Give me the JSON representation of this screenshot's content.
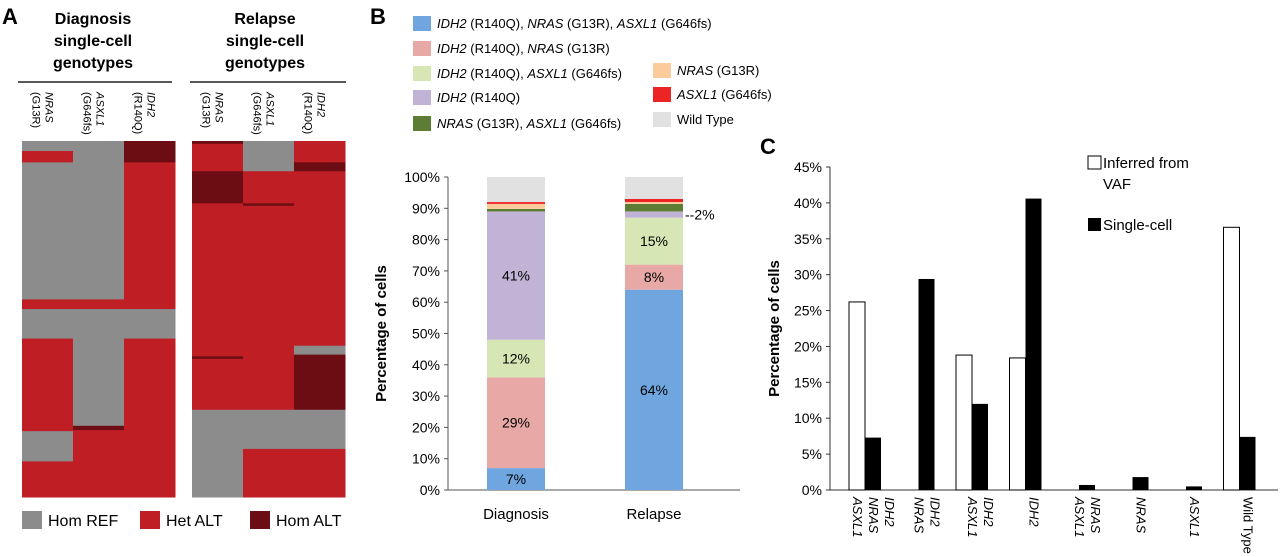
{
  "panels": {
    "A": {
      "letter": "A",
      "diagnosis_header": [
        "Diagnosis",
        "single-cell",
        "genotypes"
      ],
      "relapse_header": [
        "Relapse",
        "single-cell",
        "genotypes"
      ],
      "columns": [
        {
          "gene": "NRAS",
          "variant": "(G13R)"
        },
        {
          "gene": "ASXL1",
          "variant": "(G646fs)"
        },
        {
          "gene": "IDH2",
          "variant": "(R140Q)"
        }
      ],
      "colors": {
        "hom_ref": "#8c8c8c",
        "het_alt": "#be1e24",
        "hom_alt": "#6b0d12"
      },
      "legend": [
        {
          "key": "hom_ref",
          "label": "Hom REF"
        },
        {
          "key": "het_alt",
          "label": "Het ALT"
        },
        {
          "key": "hom_alt",
          "label": "Hom ALT"
        }
      ],
      "diagnosis_blocks": [
        {
          "col": 0,
          "from": 0,
          "to": 0.028,
          "g": "hom_ref"
        },
        {
          "col": 0,
          "from": 0.028,
          "to": 0.06,
          "g": "het_alt"
        },
        {
          "col": 0,
          "from": 0.06,
          "to": 0.445,
          "g": "hom_ref"
        },
        {
          "col": 0,
          "from": 0.445,
          "to": 0.472,
          "g": "het_alt"
        },
        {
          "col": 0,
          "from": 0.472,
          "to": 0.555,
          "g": "hom_ref"
        },
        {
          "col": 0,
          "from": 0.555,
          "to": 0.815,
          "g": "het_alt"
        },
        {
          "col": 0,
          "from": 0.815,
          "to": 0.9,
          "g": "hom_ref"
        },
        {
          "col": 0,
          "from": 0.9,
          "to": 1,
          "g": "het_alt"
        },
        {
          "col": 1,
          "from": 0,
          "to": 0.445,
          "g": "hom_ref"
        },
        {
          "col": 1,
          "from": 0.445,
          "to": 0.472,
          "g": "het_alt"
        },
        {
          "col": 1,
          "from": 0.472,
          "to": 0.555,
          "g": "hom_ref"
        },
        {
          "col": 1,
          "from": 0.555,
          "to": 0.8,
          "g": "hom_ref"
        },
        {
          "col": 1,
          "from": 0.8,
          "to": 0.812,
          "g": "hom_alt"
        },
        {
          "col": 1,
          "from": 0.812,
          "to": 1,
          "g": "het_alt"
        },
        {
          "col": 2,
          "from": 0,
          "to": 0.06,
          "g": "hom_alt"
        },
        {
          "col": 2,
          "from": 0.06,
          "to": 0.472,
          "g": "het_alt"
        },
        {
          "col": 2,
          "from": 0.472,
          "to": 0.555,
          "g": "hom_ref"
        },
        {
          "col": 2,
          "from": 0.555,
          "to": 1,
          "g": "het_alt"
        }
      ],
      "relapse_blocks": [
        {
          "col": 0,
          "from": 0,
          "to": 0.008,
          "g": "hom_alt"
        },
        {
          "col": 0,
          "from": 0.008,
          "to": 0.085,
          "g": "het_alt"
        },
        {
          "col": 0,
          "from": 0.085,
          "to": 0.175,
          "g": "hom_alt"
        },
        {
          "col": 0,
          "from": 0.175,
          "to": 0.605,
          "g": "het_alt"
        },
        {
          "col": 0,
          "from": 0.605,
          "to": 0.612,
          "g": "hom_alt"
        },
        {
          "col": 0,
          "from": 0.612,
          "to": 0.755,
          "g": "het_alt"
        },
        {
          "col": 0,
          "from": 0.755,
          "to": 1,
          "g": "hom_ref"
        },
        {
          "col": 1,
          "from": 0,
          "to": 0.085,
          "g": "hom_ref"
        },
        {
          "col": 1,
          "from": 0.085,
          "to": 0.175,
          "g": "het_alt"
        },
        {
          "col": 1,
          "from": 0.175,
          "to": 0.182,
          "g": "hom_alt"
        },
        {
          "col": 1,
          "from": 0.182,
          "to": 0.755,
          "g": "het_alt"
        },
        {
          "col": 1,
          "from": 0.755,
          "to": 0.865,
          "g": "hom_ref"
        },
        {
          "col": 1,
          "from": 0.865,
          "to": 1,
          "g": "het_alt"
        },
        {
          "col": 2,
          "from": 0,
          "to": 0.06,
          "g": "het_alt"
        },
        {
          "col": 2,
          "from": 0.06,
          "to": 0.085,
          "g": "hom_alt"
        },
        {
          "col": 2,
          "from": 0.085,
          "to": 0.575,
          "g": "het_alt"
        },
        {
          "col": 2,
          "from": 0.575,
          "to": 0.6,
          "g": "hom_ref"
        },
        {
          "col": 2,
          "from": 0.6,
          "to": 0.755,
          "g": "hom_alt"
        },
        {
          "col": 2,
          "from": 0.755,
          "to": 0.865,
          "g": "hom_ref"
        },
        {
          "col": 2,
          "from": 0.865,
          "to": 1,
          "g": "het_alt"
        }
      ]
    },
    "B": {
      "letter": "B",
      "legend": [
        {
          "key": "tri",
          "parts": [
            {
              "t": "IDH2",
              "i": true
            },
            {
              "t": " (R140Q), ",
              "i": false
            },
            {
              "t": "NRAS",
              "i": true
            },
            {
              "t": " (G13R), ",
              "i": false
            },
            {
              "t": "ASXL1",
              "i": true
            },
            {
              "t": " (G646fs)",
              "i": false
            }
          ]
        },
        {
          "key": "idh_nras",
          "parts": [
            {
              "t": "IDH2",
              "i": true
            },
            {
              "t": " (R140Q), ",
              "i": false
            },
            {
              "t": "NRAS",
              "i": true
            },
            {
              "t": " (G13R)",
              "i": false
            }
          ]
        },
        {
          "key": "idh_asxl",
          "parts": [
            {
              "t": "IDH2",
              "i": true
            },
            {
              "t": " (R140Q), ",
              "i": false
            },
            {
              "t": "ASXL1",
              "i": true
            },
            {
              "t": " (G646fs)",
              "i": false
            }
          ]
        },
        {
          "key": "idh",
          "parts": [
            {
              "t": "IDH2",
              "i": true
            },
            {
              "t": " (R140Q)",
              "i": false
            }
          ]
        },
        {
          "key": "nras_asxl",
          "parts": [
            {
              "t": "NRAS",
              "i": true
            },
            {
              "t": " (G13R), ",
              "i": false
            },
            {
              "t": "ASXL1",
              "i": true
            },
            {
              "t": " (G646fs)",
              "i": false
            }
          ]
        },
        {
          "key": "nras",
          "parts": [
            {
              "t": "NRAS",
              "i": true
            },
            {
              "t": " (G13R)",
              "i": false
            }
          ]
        },
        {
          "key": "asxl",
          "parts": [
            {
              "t": "ASXL1",
              "i": true
            },
            {
              "t": " (G646fs)",
              "i": false
            }
          ]
        },
        {
          "key": "wt",
          "parts": [
            {
              "t": "Wild Type",
              "i": false
            }
          ]
        }
      ],
      "colors": {
        "tri": "#6fa6df",
        "idh_nras": "#e8a9a6",
        "idh_asxl": "#d6e6b4",
        "idh": "#c0b3d6",
        "nras_asxl": "#5d7d34",
        "nras": "#fbcb9c",
        "asxl": "#ec2424",
        "wt": "#e1e1e1"
      }
    },
    "C": {
      "letter": "C",
      "legend": [
        {
          "key": "inferred",
          "label": "Inferred from VAF",
          "lines": [
            "Inferred from",
            "VAF"
          ]
        },
        {
          "key": "single",
          "label": "Single-cell",
          "lines": [
            "Single-cell"
          ]
        }
      ]
    }
  },
  "chart_data": [
    {
      "type": "heatmap",
      "title": "Diagnosis single-cell genotypes",
      "columns": [
        "NRAS (G13R)",
        "ASXL1 (G646fs)",
        "IDH2 (R140Q)"
      ],
      "legend": [
        "Hom REF",
        "Het ALT",
        "Hom ALT"
      ]
    },
    {
      "type": "heatmap",
      "title": "Relapse single-cell genotypes",
      "columns": [
        "NRAS (G13R)",
        "ASXL1 (G646fs)",
        "IDH2 (R140Q)"
      ],
      "legend": [
        "Hom REF",
        "Het ALT",
        "Hom ALT"
      ]
    },
    {
      "type": "bar",
      "stacked": true,
      "categories": [
        "Diagnosis",
        "Relapse"
      ],
      "ylabel": "Percentage of cells",
      "ylim": [
        0,
        100
      ],
      "yticks": [
        "0%",
        "10%",
        "20%",
        "30%",
        "40%",
        "50%",
        "60%",
        "70%",
        "80%",
        "90%",
        "100%"
      ],
      "series": [
        {
          "key": "tri",
          "values": [
            7,
            64
          ]
        },
        {
          "key": "idh_nras",
          "values": [
            29,
            8
          ]
        },
        {
          "key": "idh_asxl",
          "values": [
            12,
            15
          ]
        },
        {
          "key": "idh",
          "values": [
            41,
            2
          ]
        },
        {
          "key": "nras_asxl",
          "values": [
            0.8,
            2.4
          ]
        },
        {
          "key": "nras",
          "values": [
            1.6,
            0.6
          ]
        },
        {
          "key": "asxl",
          "values": [
            0.6,
            1
          ]
        },
        {
          "key": "wt",
          "values": [
            8,
            7
          ]
        }
      ],
      "data_labels": [
        {
          "series": "tri",
          "cat": 0,
          "text": "7%"
        },
        {
          "series": "idh_nras",
          "cat": 0,
          "text": "29%"
        },
        {
          "series": "idh_asxl",
          "cat": 0,
          "text": "12%"
        },
        {
          "series": "idh",
          "cat": 0,
          "text": "41%"
        },
        {
          "series": "tri",
          "cat": 1,
          "text": "64%"
        },
        {
          "series": "idh_nras",
          "cat": 1,
          "text": "8%"
        },
        {
          "series": "idh_asxl",
          "cat": 1,
          "text": "15%"
        }
      ],
      "annotation": {
        "series": "idh",
        "cat": 1,
        "text": "--2%"
      }
    },
    {
      "type": "bar",
      "ylabel": "Percentage of cells",
      "ylim": [
        0,
        45
      ],
      "yticks": [
        "0%",
        "5%",
        "10%",
        "15%",
        "20%",
        "25%",
        "30%",
        "35%",
        "40%",
        "45%"
      ],
      "categories": [
        [
          "ASXL1",
          "NRAS",
          "IDH2"
        ],
        [
          "NRAS",
          "IDH2"
        ],
        [
          "ASXL1",
          "IDH2"
        ],
        [
          "IDH2"
        ],
        [
          "ASXL1",
          "NRAS"
        ],
        [
          "NRAS"
        ],
        [
          "ASXL1"
        ],
        [
          "Wild Type"
        ]
      ],
      "series": [
        {
          "key": "inferred",
          "name": "Inferred from VAF",
          "values": [
            26.2,
            0,
            18.8,
            18.4,
            0,
            0,
            0,
            36.6
          ]
        },
        {
          "key": "single",
          "name": "Single-cell",
          "values": [
            7.3,
            29.4,
            12,
            40.6,
            0.7,
            1.8,
            0.5,
            7.4
          ]
        }
      ],
      "legend_position": "top-right"
    }
  ]
}
